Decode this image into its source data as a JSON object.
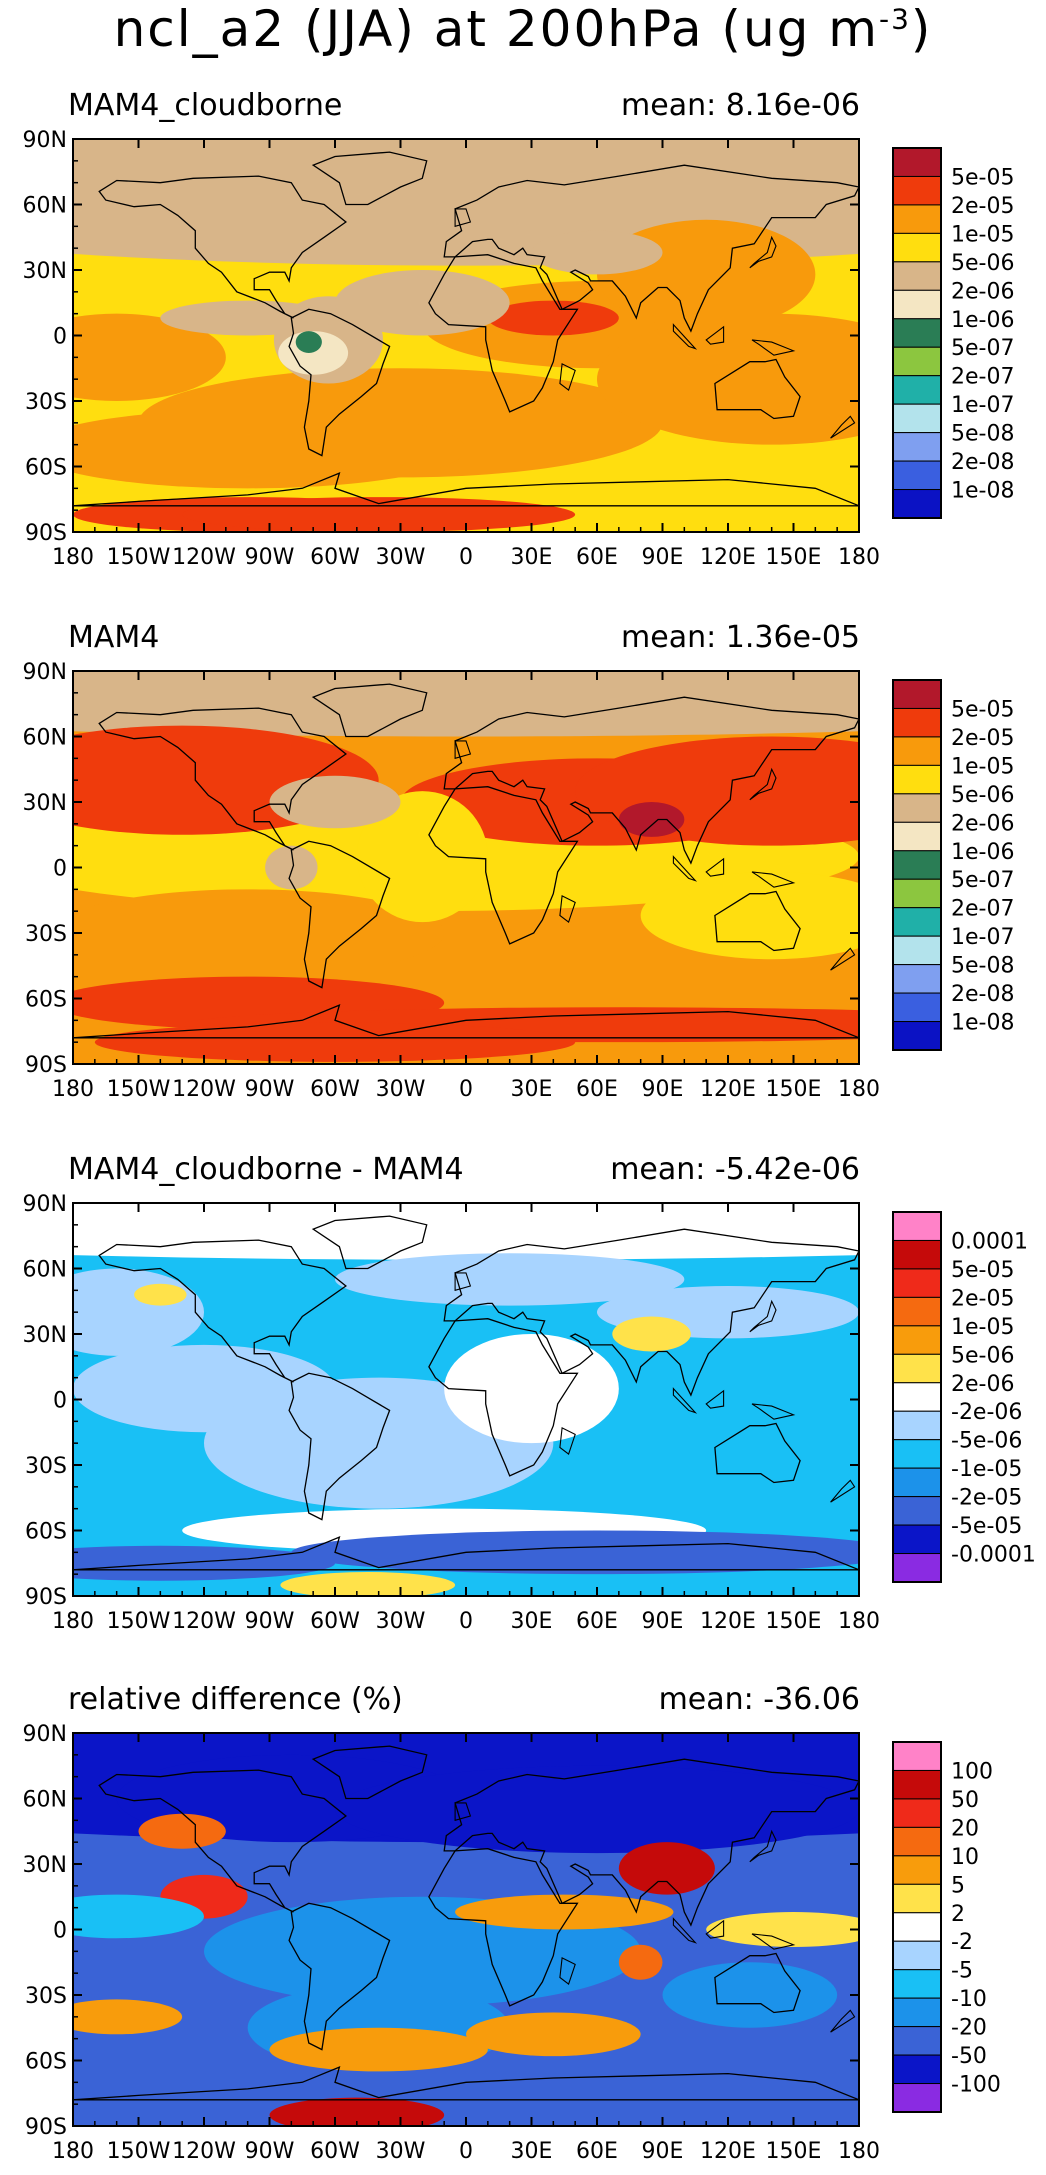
{
  "figure": {
    "title_prefix": "ncl_a2 (JJA) at 200hPa (ug m",
    "title_exp": "-3",
    "title_suffix": ")"
  },
  "lat_labels": [
    "90N",
    "60N",
    "30N",
    "0",
    "30S",
    "60S",
    "90S"
  ],
  "lon_labels": [
    "180",
    "150W",
    "120W",
    "90W",
    "60W",
    "30W",
    "0",
    "30E",
    "60E",
    "90E",
    "120E",
    "150E",
    "180"
  ],
  "colors": {
    "abs": [
      "#b2182b",
      "#ef3b0c",
      "#f89a0c",
      "#ffde0f",
      "#d8b589",
      "#f4e6c3",
      "#2a7d55",
      "#8cc63f",
      "#20b0a8",
      "#b3e3ec",
      "#7f9ff0",
      "#3a5fe0",
      "#0b12c4"
    ],
    "diff": [
      "#ff82c8",
      "#c50a0a",
      "#ef2a1a",
      "#f56a10",
      "#f89c0c",
      "#ffe24a",
      "#ffffff",
      "#a8d4ff",
      "#19c0f5",
      "#1c92ea",
      "#3a63d6",
      "#0b15c8",
      "#8a2be2"
    ]
  },
  "panels": [
    {
      "title": "MAM4_cloudborne",
      "mean": "mean:  8.16e-06",
      "legend_type": "abs",
      "legend_labels": [
        "5e-05",
        "2e-05",
        "1e-05",
        "5e-06",
        "2e-06",
        "1e-06",
        "5e-07",
        "2e-07",
        "1e-07",
        "5e-08",
        "2e-08",
        "1e-08"
      ]
    },
    {
      "title": "MAM4",
      "mean": "mean:  1.36e-05",
      "legend_type": "abs",
      "legend_labels": [
        "5e-05",
        "2e-05",
        "1e-05",
        "5e-06",
        "2e-06",
        "1e-06",
        "5e-07",
        "2e-07",
        "1e-07",
        "5e-08",
        "2e-08",
        "1e-08"
      ]
    },
    {
      "title": "MAM4_cloudborne - MAM4",
      "mean": "mean: -5.42e-06",
      "legend_type": "diff",
      "legend_labels": [
        "0.0001",
        "5e-05",
        "2e-05",
        "1e-05",
        "5e-06",
        "2e-06",
        "-2e-06",
        "-5e-06",
        "-1e-05",
        "-2e-05",
        "-5e-05",
        "-0.0001"
      ]
    },
    {
      "title": "relative difference (%)",
      "mean": "mean: -36.06",
      "legend_type": "diff",
      "legend_labels": [
        "100",
        "50",
        "20",
        "10",
        "5",
        "2",
        "-2",
        "-5",
        "-10",
        "-20",
        "-50",
        "-100"
      ]
    }
  ]
}
